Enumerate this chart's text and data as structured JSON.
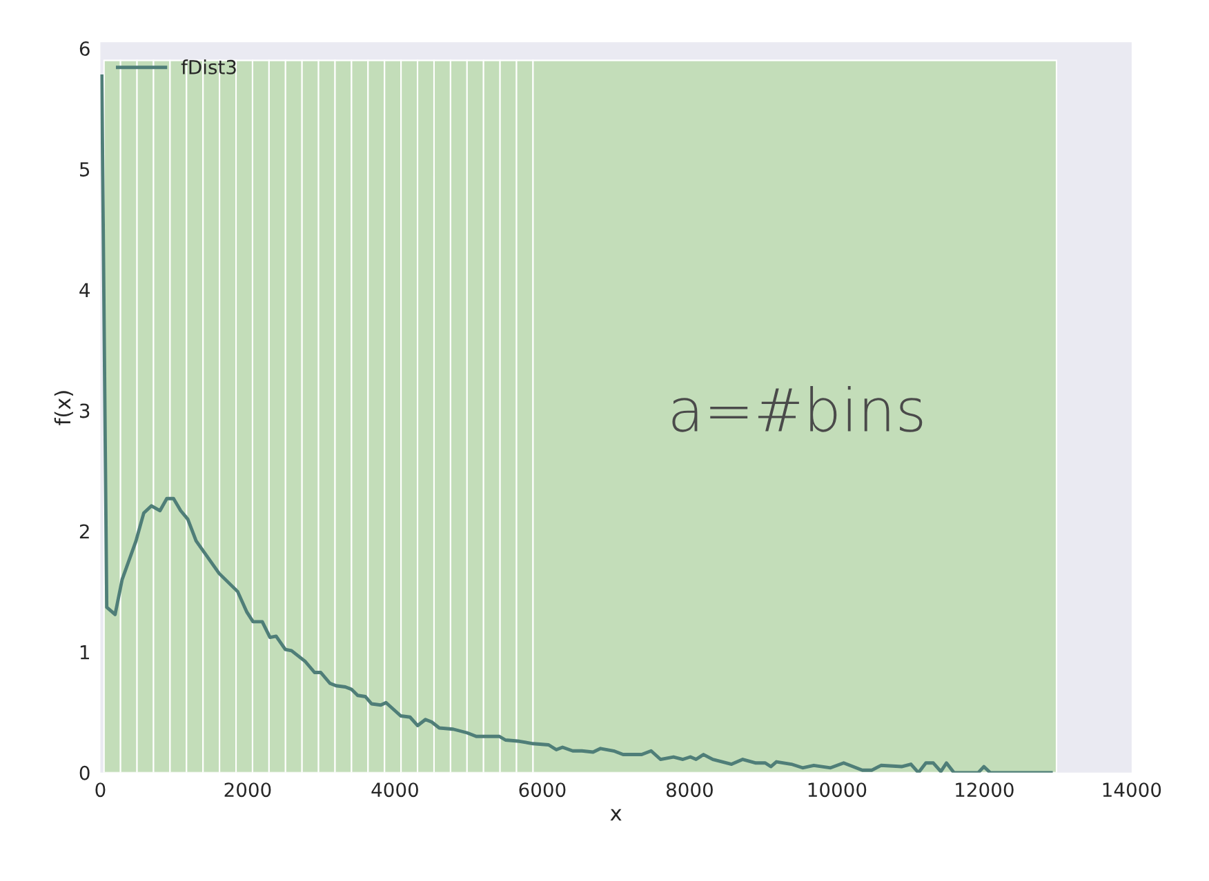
{
  "chart_data": {
    "type": "line",
    "xlabel": "x",
    "ylabel": "f(x)",
    "annotations": [
      "a=#bins"
    ],
    "xlim": [
      0,
      14000
    ],
    "xticks": [
      0,
      2000,
      4000,
      6000,
      8000,
      10000,
      12000,
      14000
    ],
    "ylim": [
      0,
      6.05
    ],
    "yticks": [
      0,
      1,
      2,
      3,
      4,
      5,
      6
    ],
    "grid": false,
    "legend": "top left",
    "series": [
      {
        "type": "histogram",
        "color": "#c3ddb9",
        "bins": [
          50,
          274,
          498,
          722,
          946,
          1170,
          1394,
          1618,
          1842,
          2066,
          2290,
          2514,
          2738,
          2962,
          3186,
          3410,
          3634,
          3858,
          4082,
          4306,
          4530,
          4754,
          4978,
          5202,
          5426,
          5650,
          5874,
          12980
        ],
        "values": [
          5.9,
          5.9,
          5.9,
          5.9,
          5.9,
          5.9,
          5.9,
          5.9,
          5.9,
          5.9,
          5.9,
          5.9,
          5.9,
          5.9,
          5.9,
          5.9,
          5.9,
          5.9,
          5.9,
          5.9,
          5.9,
          5.9,
          5.9,
          5.9,
          5.9,
          5.9,
          5.9
        ]
      },
      {
        "name": "fDist3",
        "color": "#4f7e78",
        "x": [
          20,
          87,
          200,
          296,
          484,
          589,
          694,
          810,
          902,
          994,
          1090,
          1187,
          1300,
          1613,
          1864,
          1989,
          2073,
          2198,
          2303,
          2386,
          2511,
          2595,
          2783,
          2908,
          2992,
          3117,
          3200,
          3326,
          3410,
          3493,
          3598,
          3682,
          3807,
          3878,
          4078,
          4204,
          4308,
          4413,
          4497,
          4601,
          4790,
          4978,
          5103,
          5417,
          5500,
          5688,
          5876,
          6085,
          6190,
          6274,
          6412,
          6537,
          6689,
          6790,
          6969,
          7096,
          7349,
          7477,
          7604,
          7781,
          7908,
          8010,
          8087,
          8188,
          8315,
          8569,
          8721,
          8899,
          9026,
          9102,
          9178,
          9381,
          9533,
          9685,
          9913,
          10091,
          10344,
          10471,
          10598,
          10877,
          11004,
          11106,
          11207,
          11308,
          11410,
          11486,
          11588,
          11918,
          11994,
          12080,
          12907
        ],
        "values": [
          5.77,
          1.37,
          1.31,
          1.6,
          1.92,
          2.15,
          2.21,
          2.17,
          2.27,
          2.27,
          2.17,
          2.1,
          1.92,
          1.65,
          1.5,
          1.33,
          1.25,
          1.25,
          1.12,
          1.13,
          1.02,
          1.01,
          0.92,
          0.83,
          0.83,
          0.74,
          0.72,
          0.71,
          0.69,
          0.64,
          0.63,
          0.57,
          0.56,
          0.58,
          0.47,
          0.46,
          0.39,
          0.44,
          0.42,
          0.37,
          0.36,
          0.33,
          0.3,
          0.3,
          0.27,
          0.26,
          0.24,
          0.23,
          0.19,
          0.21,
          0.18,
          0.18,
          0.17,
          0.2,
          0.18,
          0.15,
          0.15,
          0.18,
          0.11,
          0.13,
          0.11,
          0.13,
          0.11,
          0.15,
          0.11,
          0.07,
          0.11,
          0.08,
          0.08,
          0.05,
          0.09,
          0.07,
          0.04,
          0.06,
          0.04,
          0.08,
          0.02,
          0.02,
          0.06,
          0.05,
          0.07,
          0,
          0.08,
          0.08,
          0.01,
          0.08,
          0,
          0,
          0.05,
          0,
          0
        ]
      }
    ]
  }
}
